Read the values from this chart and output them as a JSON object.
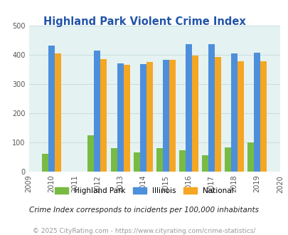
{
  "title": "Highland Park Violent Crime Index",
  "all_years": [
    2009,
    2010,
    2011,
    2012,
    2013,
    2014,
    2015,
    2016,
    2017,
    2018,
    2019,
    2020
  ],
  "data_years": [
    2010,
    2012,
    2013,
    2014,
    2015,
    2016,
    2017,
    2018,
    2019
  ],
  "highland_park": [
    60,
    125,
    80,
    65,
    80,
    73,
    57,
    83,
    100
  ],
  "illinois": [
    433,
    415,
    372,
    368,
    383,
    438,
    437,
    405,
    408
  ],
  "national": [
    406,
    387,
    366,
    375,
    383,
    397,
    394,
    379,
    379
  ],
  "hp_color": "#77bb44",
  "illinois_color": "#4d8fdb",
  "national_color": "#f5a623",
  "bg_color": "#e5f2f2",
  "ylim": [
    0,
    500
  ],
  "yticks": [
    0,
    100,
    200,
    300,
    400,
    500
  ],
  "bar_width": 0.28,
  "subtitle": "Crime Index corresponds to incidents per 100,000 inhabitants",
  "footer": "© 2025 CityRating.com - https://www.cityrating.com/crime-statistics/",
  "title_color": "#2255aa",
  "subtitle_color": "#222222",
  "footer_color": "#999999",
  "grid_color": "#c8dede"
}
